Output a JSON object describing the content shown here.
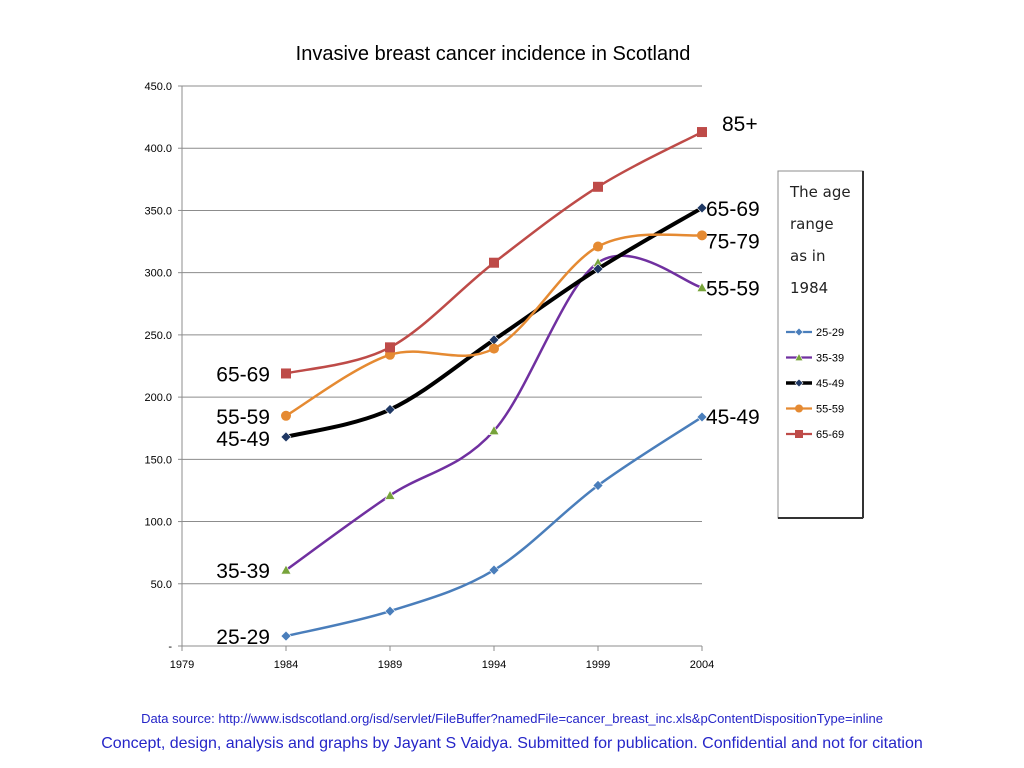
{
  "chart_data": {
    "type": "line",
    "title": "Invasive breast cancer incidence in Scotland",
    "xlabel": "",
    "ylabel": "",
    "xlim": [
      1979,
      2004
    ],
    "ylim": [
      0,
      450
    ],
    "x_ticks": [
      "1979",
      "1984",
      "1989",
      "1994",
      "1999",
      "2004"
    ],
    "y_ticks": [
      "-",
      "50.0",
      "100.0",
      "150.0",
      "200.0",
      "250.0",
      "300.0",
      "350.0",
      "400.0",
      "450.0"
    ],
    "y_tick_values": [
      0,
      50,
      100,
      150,
      200,
      250,
      300,
      350,
      400,
      450
    ],
    "grid": "horizontal",
    "legend_placement": "right",
    "x": [
      1984,
      1989,
      1994,
      1999,
      2004
    ],
    "series": [
      {
        "name": "25-29",
        "values": [
          8,
          28,
          61,
          129,
          184
        ],
        "color": "#4a7ebb",
        "marker": "diamond",
        "markerColor": "#4a7ebb",
        "width": 2.5
      },
      {
        "name": "35-39",
        "values": [
          61,
          121,
          173,
          308,
          288
        ],
        "color": "#7030a0",
        "marker": "triangle",
        "markerColor": "#77a33a",
        "width": 2.5
      },
      {
        "name": "45-49",
        "values": [
          168,
          190,
          246,
          303,
          352
        ],
        "color": "#000000",
        "marker": "diamond",
        "markerColor": "#1f3864",
        "width": 4
      },
      {
        "name": "55-59",
        "values": [
          185,
          234,
          239,
          321,
          330
        ],
        "color": "#e58a32",
        "marker": "circle",
        "markerColor": "#e58a32",
        "width": 2.5
      },
      {
        "name": "65-69",
        "values": [
          219,
          240,
          308,
          369,
          413
        ],
        "color": "#be4b48",
        "marker": "square",
        "markerColor": "#be4b48",
        "width": 2.5
      }
    ],
    "annotations": [
      {
        "text": "65-69",
        "side": "left",
        "y": 219
      },
      {
        "text": "55-59",
        "side": "left",
        "y": 185
      },
      {
        "text": "45-49",
        "side": "left",
        "y": 167
      },
      {
        "text": "35-39",
        "side": "left",
        "y": 61
      },
      {
        "text": "25-29",
        "side": "left",
        "y": 8
      },
      {
        "text": "85+",
        "side": "right",
        "y": 418
      },
      {
        "text": "65-69",
        "side": "right",
        "y": 352
      },
      {
        "text": "75-79",
        "side": "right",
        "y": 326
      },
      {
        "text": "55-59",
        "side": "right",
        "y": 288
      },
      {
        "text": "45-49",
        "side": "right",
        "y": 185
      }
    ],
    "legend_note": [
      "The age",
      "range",
      "as in",
      "1984"
    ]
  },
  "footer": {
    "source": "Data source: http://www.isdscotland.org/isd/servlet/FileBuffer?namedFile=cancer_breast_inc.xls&pContentDispositionType=inline",
    "credit": "Concept, design, analysis and graphs by Jayant S Vaidya.  Submitted for publication. Confidential and not for citation"
  }
}
